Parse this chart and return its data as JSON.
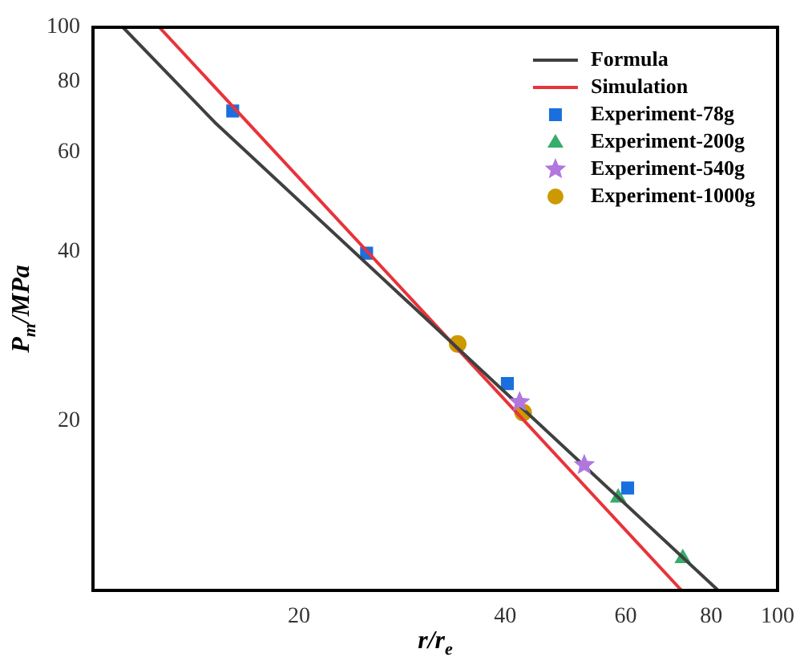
{
  "chart_data": {
    "type": "scatter",
    "xlabel": "r/r$_{e}$",
    "ylabel": "P$_{m}$/MPa",
    "log": "xy",
    "grid": false,
    "legend": "top right",
    "xlim": [
      10,
      100
    ],
    "xticks": [
      20,
      40,
      60,
      80,
      100
    ],
    "ylim": [
      10,
      100
    ],
    "yticks": [
      20,
      40,
      60,
      80,
      100
    ],
    "series": [
      {
        "name": "Formula",
        "type": "line",
        "color": "#404040",
        "marker": "none",
        "line_style": "solid",
        "x": [
          11.06,
          15.06,
          81.9
        ],
        "values": [
          100,
          67.8,
          10
        ]
      },
      {
        "name": "Simulation",
        "type": "line",
        "color": "#e8333a",
        "marker": "none",
        "line_style": "solid",
        "x": [
          12.5,
          72.4
        ],
        "values": [
          100,
          10
        ]
      },
      {
        "name": "Experiment-78g",
        "type": "scatter",
        "color": "#1a6fdf",
        "marker": "square",
        "x": [
          16.0,
          25.1,
          40.3,
          60.4
        ],
        "values": [
          71.0,
          39.7,
          23.3,
          15.2
        ]
      },
      {
        "name": "Experiment-200g",
        "type": "scatter",
        "color": "#37ad6b",
        "marker": "triangle",
        "x": [
          58.5,
          72.7
        ],
        "values": [
          14.6,
          11.4
        ]
      },
      {
        "name": "Experiment-540g",
        "type": "scatter",
        "color": "#b177de",
        "marker": "star",
        "x": [
          42.0,
          52.2
        ],
        "values": [
          21.6,
          16.7
        ]
      },
      {
        "name": "Experiment-1000g",
        "type": "scatter",
        "color": "#cc9900",
        "marker": "circle",
        "x": [
          34.1,
          42.5
        ],
        "values": [
          27.4,
          20.7
        ]
      }
    ]
  }
}
